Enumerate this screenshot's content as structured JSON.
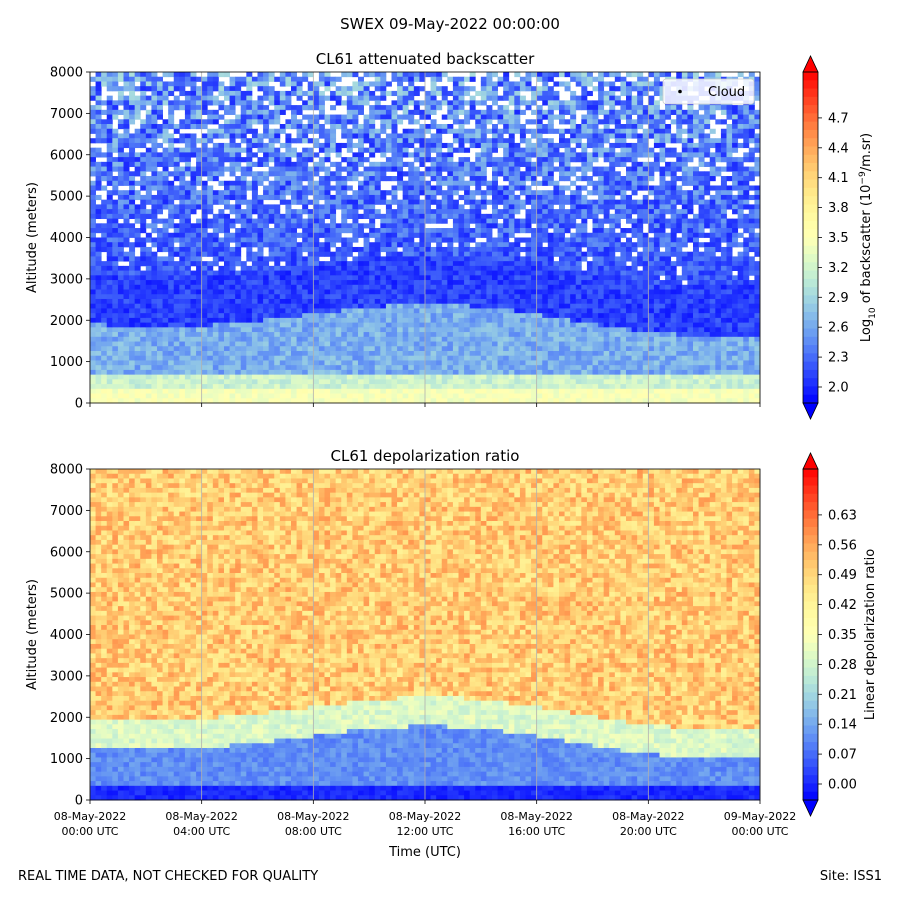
{
  "figure": {
    "suptitle": "SWEX 09-May-2022 00:00:00",
    "footer_left": "REAL TIME DATA, NOT CHECKED FOR QUALITY",
    "footer_right": "Site: ISS1",
    "xlabel": "Time (UTC)",
    "x_ticks": [
      {
        "date": "08-May-2022",
        "time": "00:00 UTC"
      },
      {
        "date": "08-May-2022",
        "time": "04:00 UTC"
      },
      {
        "date": "08-May-2022",
        "time": "08:00 UTC"
      },
      {
        "date": "08-May-2022",
        "time": "12:00 UTC"
      },
      {
        "date": "08-May-2022",
        "time": "16:00 UTC"
      },
      {
        "date": "08-May-2022",
        "time": "20:00 UTC"
      },
      {
        "date": "09-May-2022",
        "time": "00:00 UTC"
      }
    ]
  },
  "chart_data": [
    {
      "type": "heatmap",
      "title": "CL61 attenuated backscatter",
      "xlabel": "",
      "ylabel": "Altitude (meters)",
      "x_range": [
        "08-May-2022 00:00 UTC",
        "09-May-2022 00:00 UTC"
      ],
      "ylim": [
        0,
        8000
      ],
      "y_ticks": [
        0,
        1000,
        2000,
        3000,
        4000,
        5000,
        6000,
        7000,
        8000
      ],
      "grid": "vertical lines at x ticks",
      "legend": {
        "placement": "top-right",
        "entries": [
          {
            "label": "Cloud",
            "marker": "dot",
            "color": "#000000"
          }
        ]
      },
      "colorbar": {
        "label_base": "Log",
        "label_sub": "10",
        "label_mid": " of backscatter (10",
        "label_sup": "−9",
        "label_end": "/m.sr)",
        "colormap": "rainbow",
        "range": [
          2.0,
          5.0
        ],
        "extend": "both",
        "ticks": [
          "2.0",
          "2.3",
          "2.6",
          "2.9",
          "3.2",
          "3.5",
          "3.8",
          "4.1",
          "4.4",
          "4.7"
        ]
      },
      "colors": {
        "low": "#8000ff",
        "high": "#ff0000"
      }
    },
    {
      "type": "heatmap",
      "title": "CL61 depolarization ratio",
      "xlabel": "Time (UTC)",
      "ylabel": "Altitude (meters)",
      "x_range": [
        "08-May-2022 00:00 UTC",
        "09-May-2022 00:00 UTC"
      ],
      "ylim": [
        0,
        8000
      ],
      "y_ticks": [
        0,
        1000,
        2000,
        3000,
        4000,
        5000,
        6000,
        7000,
        8000
      ],
      "grid": "vertical lines at x ticks",
      "colorbar": {
        "label": "Linear depolarization ratio",
        "colormap": "rainbow",
        "range": [
          0.0,
          0.7
        ],
        "extend": "both",
        "ticks": [
          "0.00",
          "0.07",
          "0.14",
          "0.21",
          "0.28",
          "0.35",
          "0.42",
          "0.49",
          "0.56",
          "0.63"
        ]
      }
    }
  ]
}
